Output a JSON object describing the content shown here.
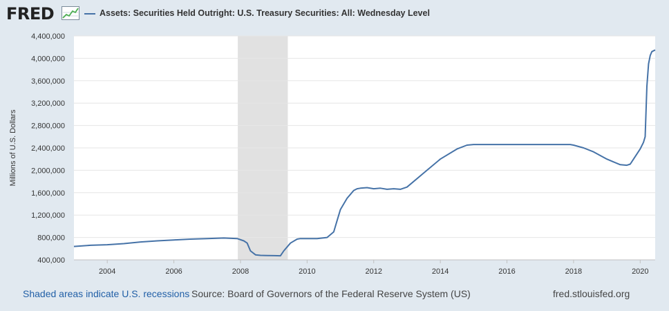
{
  "brand": {
    "logo_text": "FRED",
    "logo_icon": "chart-line-icon"
  },
  "legend": {
    "series_label": "Assets: Securities Held Outright: U.S. Treasury Securities: All: Wednesday Level",
    "color": "#4572a7"
  },
  "footer": {
    "recessions_link": "Shaded areas indicate U.S. recessions",
    "source": "Source: Board of Governors of the Federal Reserve System (US)",
    "site": "fred.stlouisfed.org"
  },
  "colors": {
    "background": "#e1e9f0",
    "plot_background": "#ffffff",
    "line": "#4572a7",
    "recession": "#e1e1e1",
    "link": "#2260a7"
  },
  "chart_data": {
    "type": "line",
    "title": "",
    "ylabel": "Millions of U.S. Dollars",
    "xlabel": "",
    "xlim": [
      2003.0,
      2020.45
    ],
    "ylim": [
      400000,
      4400000
    ],
    "x_ticks": [
      2004,
      2006,
      2008,
      2010,
      2012,
      2014,
      2016,
      2018,
      2020
    ],
    "x_tick_labels": [
      "2004",
      "2006",
      "2008",
      "2010",
      "2012",
      "2014",
      "2016",
      "2018",
      "2020"
    ],
    "y_ticks": [
      400000,
      800000,
      1200000,
      1600000,
      2000000,
      2400000,
      2800000,
      3200000,
      3600000,
      4000000,
      4400000
    ],
    "y_tick_labels": [
      "400,000",
      "800,000",
      "1,200,000",
      "1,600,000",
      "2,000,000",
      "2,400,000",
      "2,800,000",
      "3,200,000",
      "3,600,000",
      "4,000,000",
      "4,400,000"
    ],
    "grid": "horizontal",
    "recessions": [
      [
        2007.92,
        2009.42
      ]
    ],
    "series": [
      {
        "name": "Assets: Securities Held Outright: U.S. Treasury Securities: All: Wednesday Level",
        "x": [
          2003.0,
          2003.5,
          2004.0,
          2004.5,
          2005.0,
          2005.5,
          2006.0,
          2006.5,
          2007.0,
          2007.5,
          2007.9,
          2008.1,
          2008.2,
          2008.3,
          2008.45,
          2008.6,
          2008.8,
          2009.0,
          2009.2,
          2009.3,
          2009.5,
          2009.7,
          2009.8,
          2010.0,
          2010.3,
          2010.6,
          2010.8,
          2010.9,
          2011.0,
          2011.2,
          2011.4,
          2011.5,
          2011.6,
          2011.8,
          2012.0,
          2012.2,
          2012.4,
          2012.6,
          2012.8,
          2013.0,
          2013.5,
          2014.0,
          2014.5,
          2014.8,
          2015.0,
          2015.5,
          2016.0,
          2016.5,
          2017.0,
          2017.5,
          2017.9,
          2018.0,
          2018.3,
          2018.6,
          2019.0,
          2019.2,
          2019.4,
          2019.6,
          2019.7,
          2019.8,
          2020.0,
          2020.1,
          2020.15,
          2020.2,
          2020.25,
          2020.3,
          2020.35,
          2020.45
        ],
        "y": [
          640000,
          660000,
          670000,
          690000,
          720000,
          740000,
          755000,
          770000,
          780000,
          790000,
          780000,
          740000,
          700000,
          560000,
          490000,
          480000,
          478000,
          475000,
          473000,
          560000,
          700000,
          770000,
          780000,
          780000,
          780000,
          800000,
          900000,
          1100000,
          1300000,
          1500000,
          1640000,
          1670000,
          1680000,
          1690000,
          1670000,
          1680000,
          1660000,
          1670000,
          1660000,
          1700000,
          1950000,
          2200000,
          2380000,
          2450000,
          2460000,
          2460000,
          2460000,
          2460000,
          2460000,
          2460000,
          2460000,
          2450000,
          2400000,
          2330000,
          2200000,
          2150000,
          2100000,
          2090000,
          2110000,
          2200000,
          2380000,
          2500000,
          2600000,
          3500000,
          3900000,
          4050000,
          4120000,
          4150000
        ]
      }
    ]
  }
}
